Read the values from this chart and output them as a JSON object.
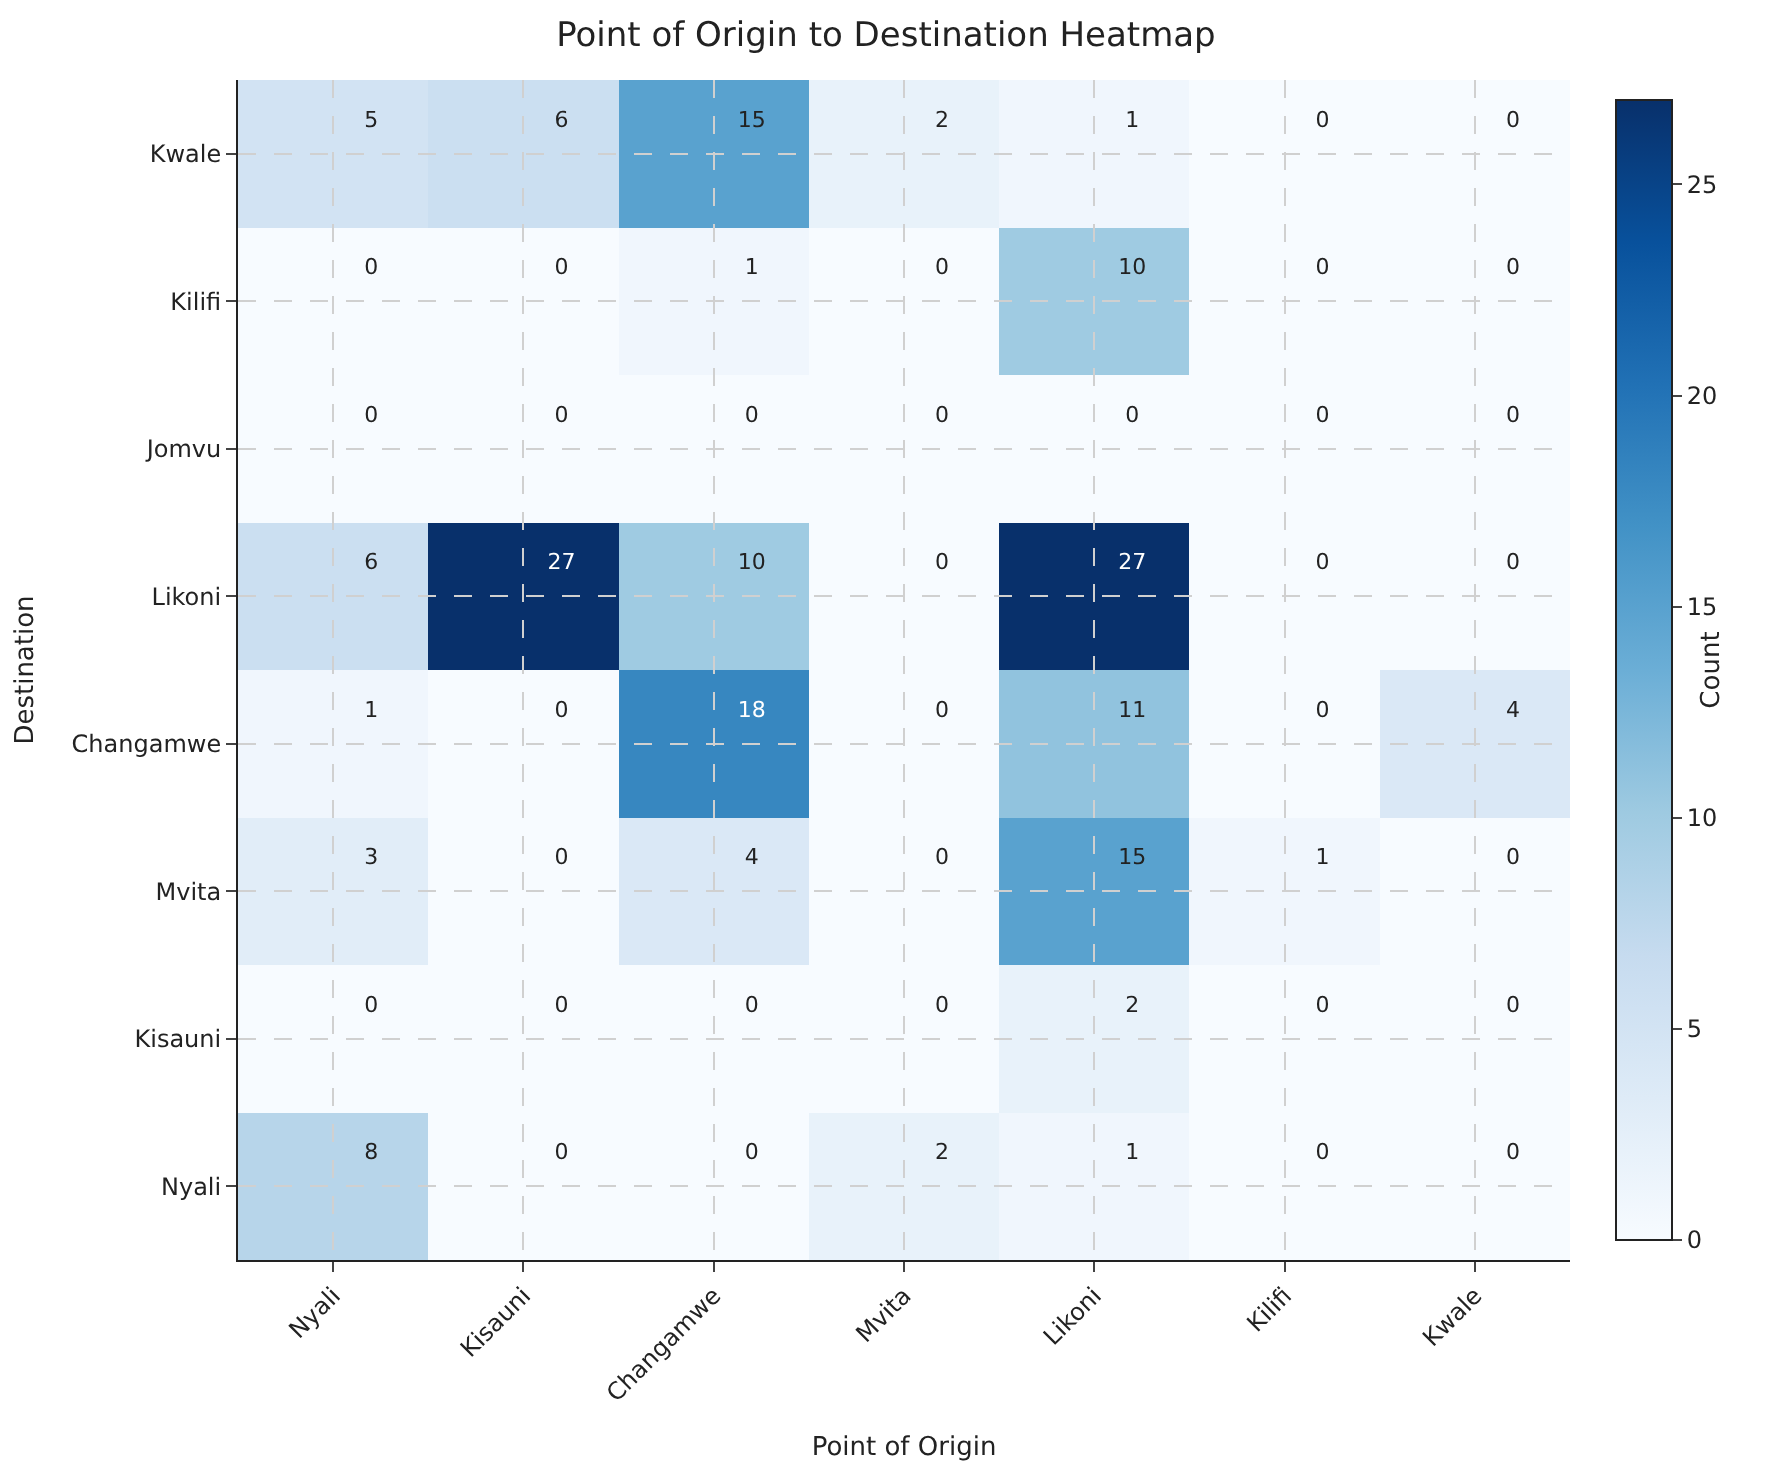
{
  "chart_data": {
    "type": "heatmap",
    "title": "Point of Origin to Destination Heatmap",
    "xlabel": "Point of Origin",
    "ylabel": "Destination",
    "clabel": "Count",
    "categories": [
      "Nyali",
      "Kisauni",
      "Changamwe",
      "Mvita",
      "Likoni",
      "Kilifi",
      "Kwale"
    ],
    "y_categories": [
      "Kwale",
      "Kilifi",
      "Jomvu",
      "Likoni",
      "Changamwe",
      "Mvita",
      "Kisauni",
      "Nyali"
    ],
    "cells": [
      [
        5,
        6,
        15,
        2,
        1,
        0,
        0
      ],
      [
        0,
        0,
        1,
        0,
        10,
        0,
        0
      ],
      [
        0,
        0,
        0,
        0,
        0,
        0,
        0
      ],
      [
        6,
        27,
        10,
        0,
        27,
        0,
        0
      ],
      [
        1,
        0,
        18,
        0,
        11,
        0,
        4
      ],
      [
        3,
        0,
        4,
        0,
        15,
        1,
        0
      ],
      [
        0,
        0,
        0,
        0,
        2,
        0,
        0
      ],
      [
        8,
        0,
        0,
        2,
        1,
        0,
        0
      ]
    ],
    "clim": [
      0,
      27
    ],
    "cticks": [
      0,
      5,
      10,
      15,
      20,
      25
    ],
    "data_labels": true,
    "grid": true
  }
}
